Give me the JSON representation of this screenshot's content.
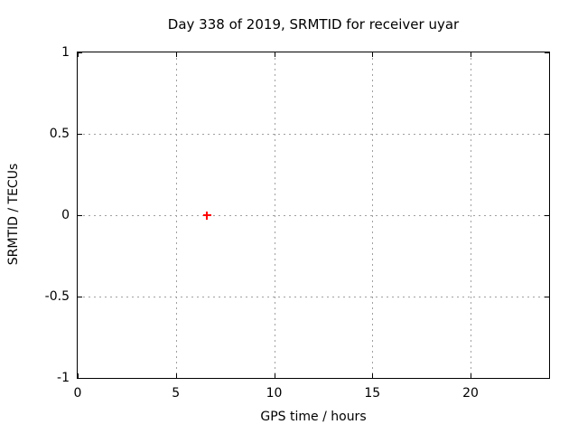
{
  "chart_data": {
    "type": "scatter",
    "title": "Day 338 of 2019, SRMTID for receiver uyar",
    "xlabel": "GPS time / hours",
    "ylabel": "SRMTID / TECUs",
    "xlim": [
      0,
      24
    ],
    "ylim": [
      -1,
      1
    ],
    "grid": true,
    "legend": "none",
    "xticks": {
      "values": [
        0,
        5,
        10,
        15,
        20
      ],
      "labels": [
        "0",
        "5",
        "10",
        "15",
        "20"
      ]
    },
    "yticks": {
      "values": [
        1,
        0.5,
        0,
        -0.5,
        -1
      ],
      "labels": [
        "1",
        "0.5",
        "0",
        "-0.5",
        "-1"
      ]
    },
    "series": [
      {
        "name": "SRMTID",
        "marker": "plus",
        "color": "#ff0000",
        "points": [
          {
            "x": 6.57,
            "y": 0.0
          }
        ]
      }
    ],
    "colors": {
      "background": "#ffffff",
      "axis": "#000000",
      "grid": "#a0a0a0",
      "text": "#000000"
    }
  }
}
